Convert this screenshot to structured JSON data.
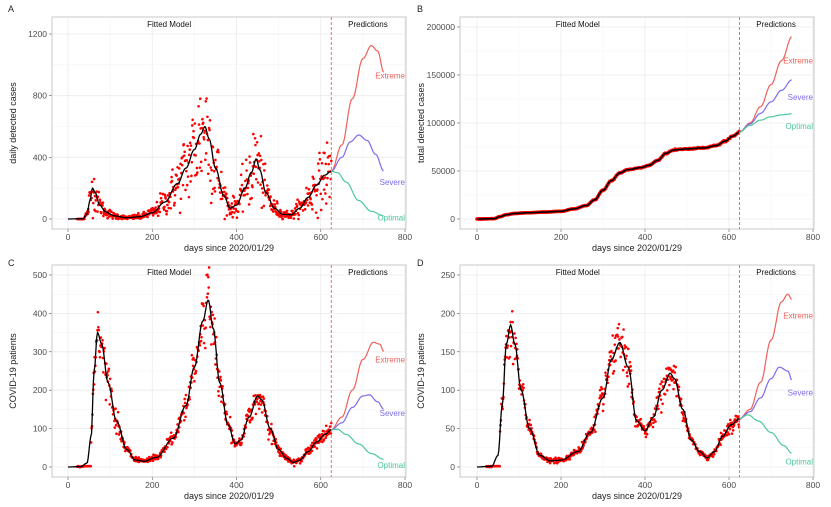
{
  "colors": {
    "observed": "#ff0000",
    "fitted": "#000000",
    "extreme": "#f0605a",
    "severe": "#7b6cf0",
    "optimal": "#4cc89a",
    "cutoff": "#f0605a"
  },
  "chart_data": [
    {
      "panel": "A",
      "type": "scatter",
      "title": "",
      "xlabel": "days since 2020/01/29",
      "ylabel": "daily detected cases",
      "xlim": [
        0,
        800
      ],
      "ylim": [
        0,
        1200
      ],
      "xticks": [
        0,
        200,
        400,
        600,
        800
      ],
      "yticks": [
        0,
        400,
        800,
        1200
      ],
      "grid": true,
      "cutoff_day": 625,
      "annotations": {
        "left": "Fitted Model",
        "right": "Predictions"
      },
      "fitted": {
        "name": "Fitted Model",
        "x": [
          0,
          35,
          45,
          52,
          58,
          65,
          75,
          90,
          110,
          140,
          170,
          200,
          230,
          260,
          280,
          300,
          315,
          325,
          335,
          350,
          370,
          385,
          400,
          420,
          435,
          447,
          455,
          470,
          490,
          510,
          530,
          550,
          570,
          590,
          610,
          625
        ],
        "y": [
          0,
          2,
          30,
          120,
          200,
          170,
          90,
          45,
          20,
          8,
          15,
          40,
          110,
          230,
          330,
          450,
          550,
          600,
          520,
          330,
          150,
          70,
          90,
          200,
          300,
          390,
          320,
          170,
          70,
          30,
          28,
          70,
          140,
          220,
          285,
          310
        ]
      },
      "observed_noise": 0.35,
      "predictions": [
        {
          "name": "Extreme",
          "x": [
            625,
            650,
            675,
            700,
            720,
            735,
            750
          ],
          "y": [
            310,
            480,
            780,
            1040,
            1125,
            1090,
            950
          ]
        },
        {
          "name": "Severe",
          "x": [
            625,
            650,
            670,
            690,
            710,
            730,
            750
          ],
          "y": [
            310,
            400,
            500,
            545,
            510,
            420,
            310
          ]
        },
        {
          "name": "Optimal",
          "x": [
            625,
            640,
            660,
            690,
            720,
            750
          ],
          "y": [
            310,
            300,
            240,
            120,
            50,
            20
          ]
        }
      ]
    },
    {
      "panel": "B",
      "type": "line",
      "title": "",
      "xlabel": "days since 2020/01/29",
      "ylabel": "total detected cases",
      "xlim": [
        0,
        800
      ],
      "ylim": [
        0,
        200000
      ],
      "xticks": [
        0,
        200,
        400,
        600,
        800
      ],
      "yticks": [
        0,
        50000,
        100000,
        150000,
        200000
      ],
      "grid": true,
      "cutoff_day": 625,
      "annotations": {
        "left": "Fitted Model",
        "right": "Predictions"
      },
      "fitted": {
        "name": "Fitted Model",
        "x": [
          0,
          40,
          55,
          70,
          90,
          120,
          160,
          200,
          230,
          260,
          280,
          300,
          320,
          340,
          360,
          390,
          410,
          430,
          450,
          470,
          500,
          540,
          570,
          590,
          610,
          625
        ],
        "y": [
          0,
          300,
          2500,
          4500,
          5800,
          6500,
          7200,
          8000,
          10500,
          14000,
          20000,
          30000,
          40000,
          48000,
          51500,
          53500,
          56000,
          61000,
          68500,
          72000,
          73000,
          74000,
          76500,
          81000,
          86500,
          90500
        ]
      },
      "observed_noise": 0.02,
      "predictions": [
        {
          "name": "Extreme",
          "x": [
            625,
            650,
            675,
            700,
            725,
            750
          ],
          "y": [
            90500,
            100000,
            117000,
            140000,
            165000,
            190000
          ]
        },
        {
          "name": "Severe",
          "x": [
            625,
            650,
            675,
            700,
            725,
            750
          ],
          "y": [
            90500,
            99000,
            110000,
            122000,
            134000,
            145000
          ]
        },
        {
          "name": "Optimal",
          "x": [
            625,
            650,
            675,
            700,
            725,
            750
          ],
          "y": [
            90500,
            97500,
            103000,
            106500,
            108500,
            109500
          ]
        }
      ]
    },
    {
      "panel": "C",
      "type": "scatter",
      "title": "",
      "xlabel": "days since 2020/01/29",
      "ylabel": "COVID-19 patients",
      "xlim": [
        0,
        800
      ],
      "ylim": [
        0,
        500
      ],
      "xticks": [
        0,
        200,
        400,
        600,
        800
      ],
      "yticks": [
        0,
        100,
        200,
        300,
        400,
        500
      ],
      "grid": true,
      "cutoff_day": 625,
      "annotations": {
        "left": "Fitted Model",
        "right": "Predictions"
      },
      "fitted": {
        "name": "Fitted Model",
        "x": [
          0,
          30,
          45,
          55,
          62,
          70,
          80,
          95,
          115,
          140,
          160,
          180,
          210,
          250,
          280,
          300,
          320,
          333,
          345,
          360,
          380,
          397,
          410,
          430,
          450,
          460,
          480,
          500,
          520,
          535,
          550,
          570,
          590,
          610,
          625
        ],
        "y": [
          0,
          1,
          10,
          80,
          250,
          350,
          320,
          220,
          120,
          45,
          18,
          15,
          25,
          75,
          160,
          260,
          380,
          435,
          360,
          220,
          110,
          60,
          70,
          130,
          185,
          175,
          100,
          45,
          22,
          12,
          18,
          40,
          65,
          85,
          97
        ]
      },
      "observed_noise": 0.1,
      "predictions": [
        {
          "name": "Extreme",
          "x": [
            625,
            650,
            675,
            700,
            725,
            740,
            750
          ],
          "y": [
            97,
            130,
            200,
            280,
            325,
            320,
            300
          ]
        },
        {
          "name": "Severe",
          "x": [
            625,
            650,
            675,
            700,
            715,
            735,
            750
          ],
          "y": [
            97,
            115,
            155,
            185,
            188,
            170,
            150
          ]
        },
        {
          "name": "Optimal",
          "x": [
            625,
            640,
            660,
            690,
            720,
            750
          ],
          "y": [
            97,
            98,
            85,
            60,
            35,
            20
          ]
        }
      ]
    },
    {
      "panel": "D",
      "type": "scatter",
      "title": "",
      "xlabel": "days since 2020/01/29",
      "ylabel": "COVID-19 patients",
      "xlim": [
        0,
        800
      ],
      "ylim": [
        0,
        250
      ],
      "xticks": [
        0,
        200,
        400,
        600,
        800
      ],
      "yticks": [
        0,
        50,
        100,
        150,
        200,
        250
      ],
      "grid": true,
      "cutoff_day": 625,
      "annotations": {
        "left": "Fitted Model",
        "right": "Predictions"
      },
      "fitted": {
        "name": "Fitted Model",
        "x": [
          0,
          35,
          50,
          60,
          70,
          80,
          90,
          105,
          125,
          150,
          175,
          200,
          240,
          270,
          300,
          320,
          340,
          360,
          380,
          400,
          420,
          440,
          460,
          470,
          490,
          510,
          530,
          548,
          565,
          585,
          605,
          625
        ],
        "y": [
          0,
          1,
          15,
          80,
          160,
          185,
          160,
          100,
          50,
          15,
          8,
          9,
          20,
          45,
          90,
          140,
          162,
          130,
          60,
          47,
          65,
          100,
          122,
          115,
          75,
          35,
          20,
          12,
          20,
          40,
          55,
          63
        ]
      },
      "observed_noise": 0.08,
      "predictions": [
        {
          "name": "Extreme",
          "x": [
            625,
            650,
            675,
            700,
            725,
            740,
            750
          ],
          "y": [
            63,
            75,
            110,
            165,
            215,
            225,
            218
          ]
        },
        {
          "name": "Severe",
          "x": [
            625,
            650,
            675,
            700,
            720,
            740,
            750
          ],
          "y": [
            63,
            72,
            90,
            115,
            130,
            125,
            113
          ]
        },
        {
          "name": "Optimal",
          "x": [
            625,
            645,
            670,
            700,
            730,
            750
          ],
          "y": [
            63,
            68,
            60,
            45,
            28,
            18
          ]
        }
      ]
    }
  ]
}
